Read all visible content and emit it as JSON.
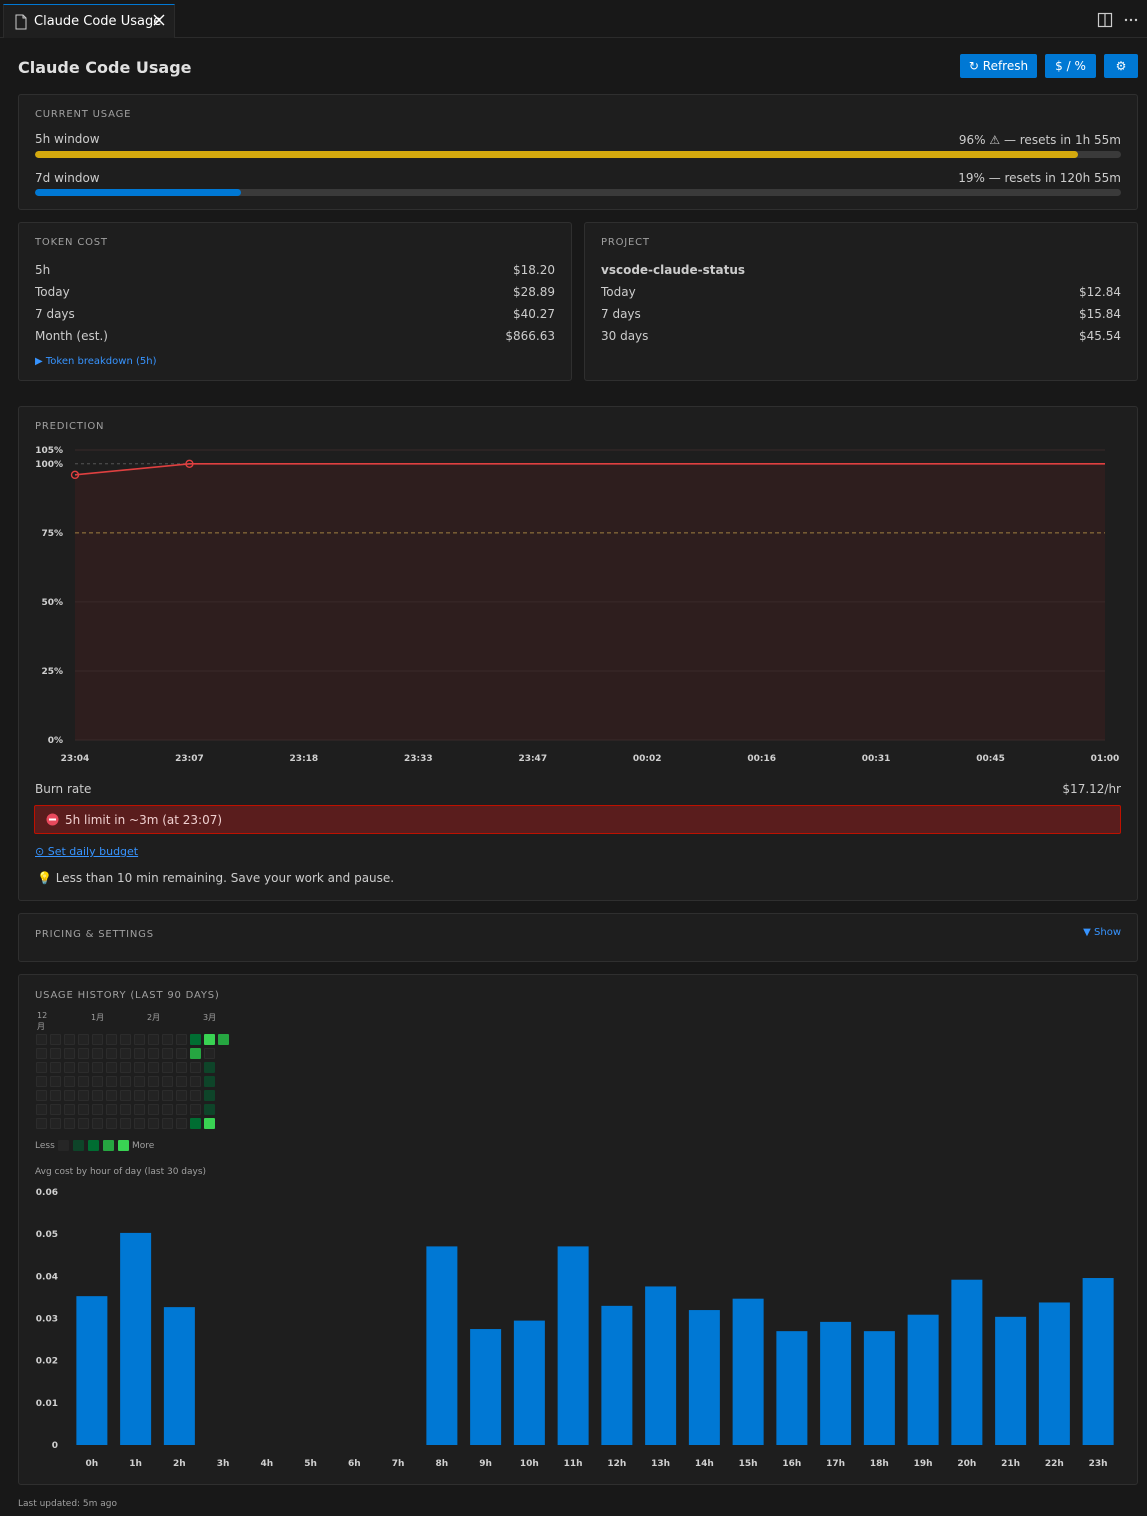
{
  "tab": {
    "title": "Claude Code Usage"
  },
  "header": {
    "title": "Claude Code Usage",
    "refresh_label": "↻ Refresh",
    "toggle_label": "$ / %",
    "settings_label": "⚙"
  },
  "current_usage": {
    "label": "CURRENT USAGE",
    "windows": [
      {
        "name": "5h window",
        "status": "96% ⚠ — resets in 1h 55m",
        "percent": 96,
        "color": "#d4a90e"
      },
      {
        "name": "7d window",
        "status": "19% — resets in 120h 55m",
        "percent": 19,
        "color": "#0078d4"
      }
    ]
  },
  "token_cost": {
    "label": "TOKEN COST",
    "rows": [
      {
        "label": "5h",
        "value": "$18.20"
      },
      {
        "label": "Today",
        "value": "$28.89"
      },
      {
        "label": "7 days",
        "value": "$40.27"
      },
      {
        "label": "Month (est.)",
        "value": "$866.63"
      }
    ],
    "breakdown_link": "▶ Token breakdown (5h)"
  },
  "project": {
    "label": "PROJECT",
    "name": "vscode-claude-status",
    "rows": [
      {
        "label": "Today",
        "value": "$12.84"
      },
      {
        "label": "7 days",
        "value": "$15.84"
      },
      {
        "label": "30 days",
        "value": "$45.54"
      }
    ]
  },
  "prediction": {
    "label": "PREDICTION",
    "burn_rate_label": "Burn rate",
    "burn_rate_value": "$17.12/hr",
    "alert": "5h limit in ~3m (at 23:07)",
    "budget_link": "⊙ Set daily budget",
    "tip": "💡 Less than 10 min remaining. Save your work and pause."
  },
  "pricing": {
    "label": "PRICING & SETTINGS",
    "toggle": "▼ Show"
  },
  "history": {
    "label": "USAGE HISTORY (LAST 90 DAYS)",
    "months": [
      "12\n月",
      "1月",
      "2月",
      "3月"
    ],
    "legend_less": "Less",
    "legend_more": "More",
    "hourly_title": "Avg cost by hour of day (last 30 days)"
  },
  "footer": {
    "last_updated": "Last updated: 5m ago"
  },
  "chart_data": [
    {
      "type": "line",
      "title": "",
      "x": [
        "23:04",
        "23:07",
        "23:18",
        "23:33",
        "23:47",
        "00:02",
        "00:16",
        "00:31",
        "00:45",
        "01:00"
      ],
      "series": [
        {
          "values": [
            96,
            100,
            100,
            100,
            100,
            100,
            100,
            100,
            100,
            100
          ]
        }
      ],
      "ylim": [
        0,
        105
      ],
      "yticks": [
        "0%",
        "25%",
        "50%",
        "75%",
        "100%",
        "105%"
      ],
      "threshold_75": 75,
      "colors": {
        "line": "#e04040",
        "fill": "#2e1e1e",
        "threshold": "#a08040"
      }
    },
    {
      "type": "bar",
      "title": "Avg cost by hour of day (last 30 days)",
      "categories": [
        "0h",
        "1h",
        "2h",
        "3h",
        "4h",
        "5h",
        "6h",
        "7h",
        "8h",
        "9h",
        "10h",
        "11h",
        "12h",
        "13h",
        "14h",
        "15h",
        "16h",
        "17h",
        "18h",
        "19h",
        "20h",
        "21h",
        "22h",
        "23h"
      ],
      "values": [
        0.0353,
        0.0503,
        0.0327,
        0,
        0,
        0,
        0,
        0,
        0.0471,
        0.0275,
        0.0295,
        0.0471,
        0.033,
        0.0376,
        0.032,
        0.0347,
        0.027,
        0.0292,
        0.027,
        0.0309,
        0.0392,
        0.0304,
        0.0338,
        0.0396
      ],
      "ylim": [
        0,
        0.06
      ],
      "yticks": [
        "0",
        "0.01",
        "0.02",
        "0.03",
        "0.04",
        "0.05",
        "0.06"
      ],
      "colors": {
        "bar": "#0078d4"
      }
    }
  ]
}
